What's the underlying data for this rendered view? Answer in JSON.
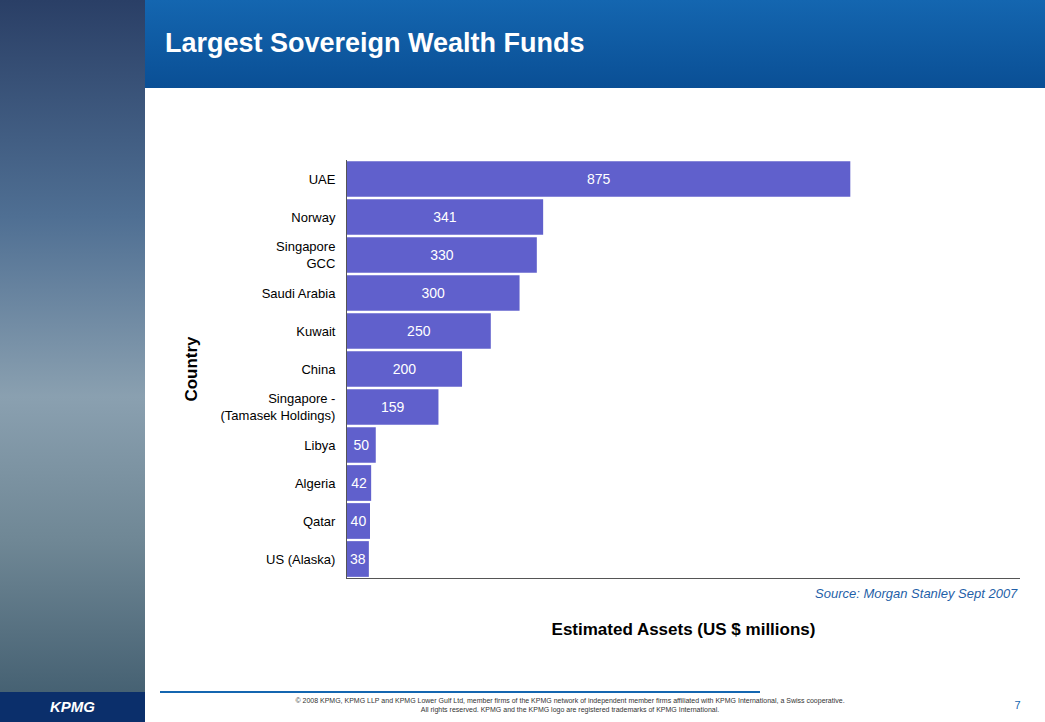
{
  "chart_data": {
    "type": "bar",
    "title": "Largest Sovereign Wealth Funds",
    "orientation": "horizontal",
    "categories": [
      "UAE",
      "Norway",
      "Singapore\nGCC",
      "Saudi Arabia",
      "Kuwait",
      "China",
      "Singapore -\n(Tamasek Holdings)",
      "Libya",
      "Algeria",
      "Qatar",
      "US (Alaska)"
    ],
    "values": [
      875,
      341,
      330,
      300,
      250,
      200,
      159,
      50,
      42,
      40,
      38
    ],
    "color": "#6060cc",
    "xlim": [
      0,
      1170
    ],
    "x_label": "Estimated Assets (US $ millions)",
    "y_label": "Country",
    "annotations": [
      "Source: Morgan Stanley Sept 2007"
    ],
    "data_labels": true,
    "tick_labels": "y",
    "grid": false
  },
  "footer": {
    "copyright": [
      "© 2008 KPMG, KPMG LLP and KPMG Lower Gulf Ltd, member firms of the KPMG network of independent member firms affiliated with KPMG International, a Swiss cooperative.",
      "All rights reserved. KPMG and the KPMG logo are registered trademarks of KPMG International."
    ],
    "page_number": "7",
    "logo": "KPMG"
  }
}
